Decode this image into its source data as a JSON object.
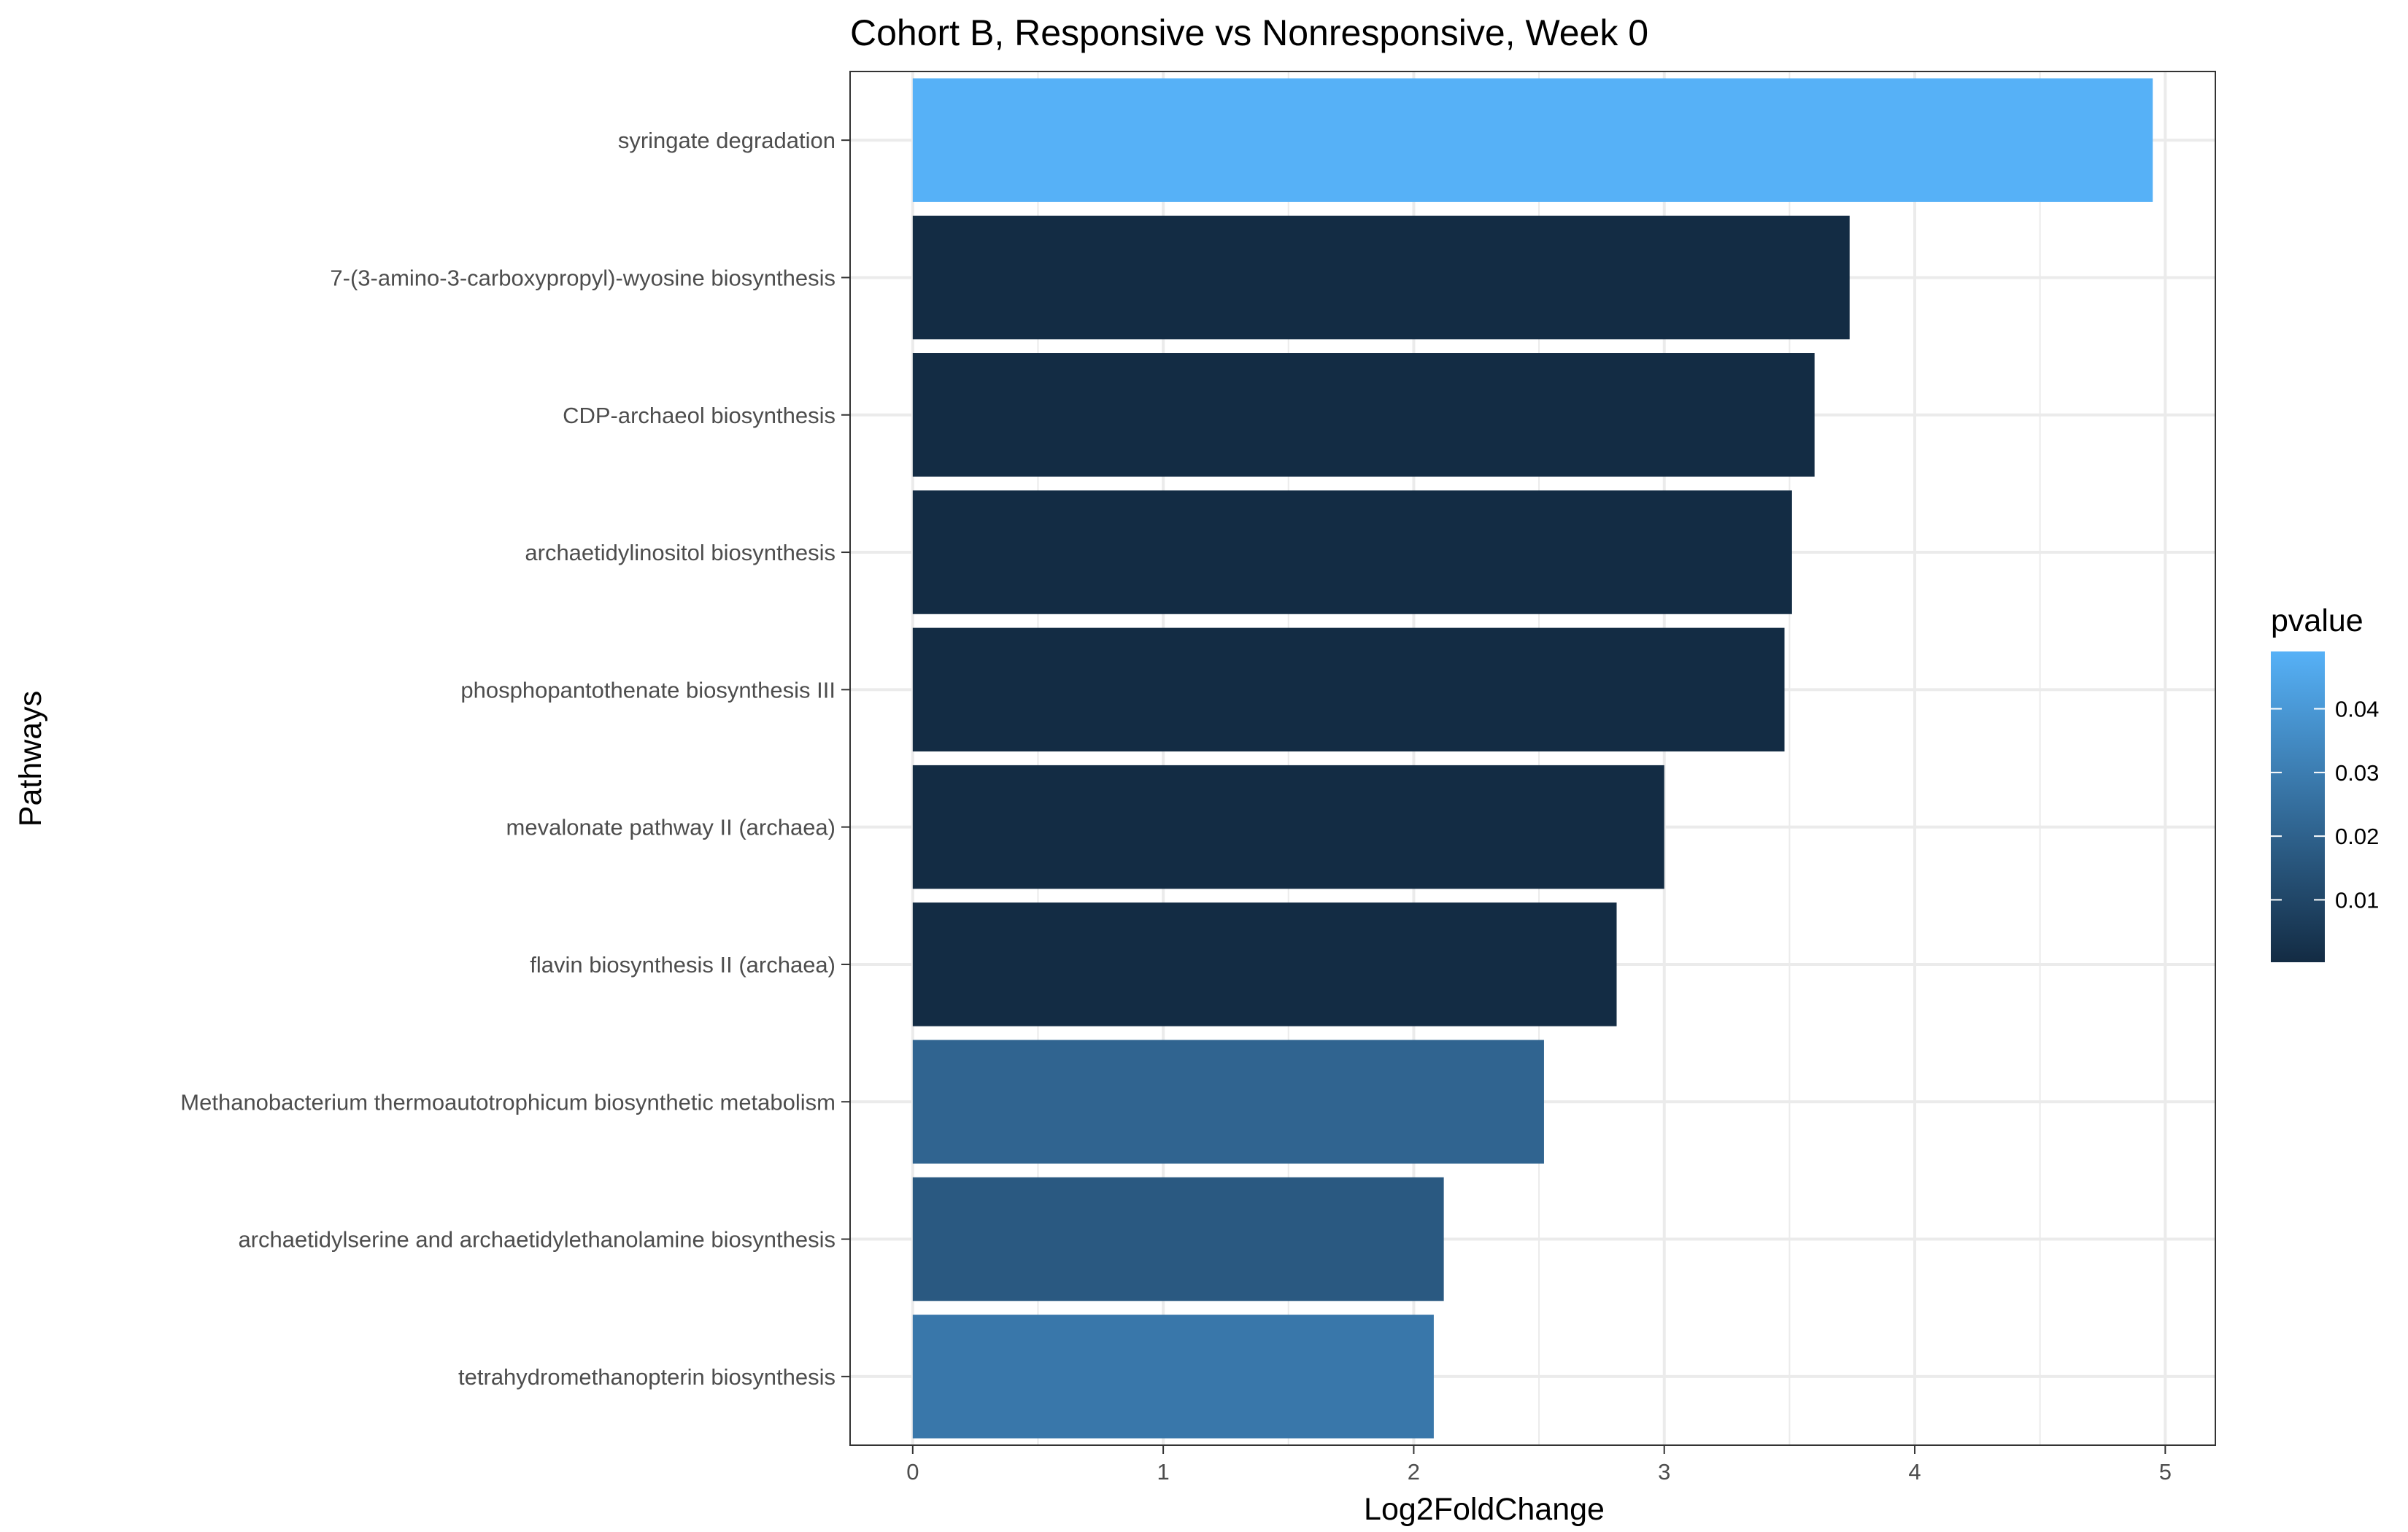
{
  "chart_data": {
    "type": "bar",
    "orientation": "horizontal",
    "title": "Cohort B, Responsive vs Nonresponsive, Week 0",
    "xlabel": "Log2FoldChange",
    "ylabel": "Pathways",
    "xlim": [
      -0.25,
      5.2
    ],
    "xticks": [
      0,
      1,
      2,
      3,
      4,
      5
    ],
    "grid": true,
    "categories": [
      "syringate degradation",
      "7-(3-amino-3-carboxypropyl)-wyosine biosynthesis",
      "CDP-archaeol biosynthesis",
      "archaetidylinositol biosynthesis",
      "phosphopantothenate biosynthesis III",
      "mevalonate pathway II (archaea)",
      "flavin biosynthesis II (archaea)",
      "Methanobacterium thermoautotrophicum biosynthetic metabolism",
      "archaetidylserine and archaetidylethanolamine biosynthesis",
      "tetrahydromethanopterin biosynthesis"
    ],
    "values": [
      4.95,
      3.74,
      3.6,
      3.51,
      3.48,
      3.0,
      2.81,
      2.52,
      2.12,
      2.08
    ],
    "pvalues": [
      0.049,
      0.0005,
      0.0005,
      0.0005,
      0.0005,
      0.0005,
      0.0005,
      0.021,
      0.017,
      0.028
    ],
    "legend": {
      "title": "pvalue",
      "position": "right",
      "ticks": [
        0.01,
        0.02,
        0.03,
        0.04
      ],
      "range": [
        0.0002,
        0.049
      ],
      "color_low": "#132B43",
      "color_high": "#56B1F7"
    }
  }
}
